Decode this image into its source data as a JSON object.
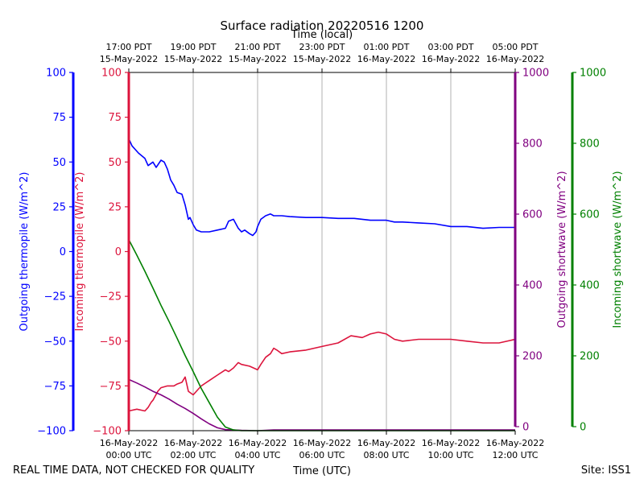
{
  "chart_data": {
    "type": "line",
    "title": "Surface radiation 20220516 1200",
    "top_axis_label": "Time (local)",
    "xlabel": "Time (UTC)",
    "footer_left": "REAL TIME DATA, NOT CHECKED FOR QUALITY",
    "footer_right": "Site: ISS1",
    "x_range_hours": [
      0,
      12
    ],
    "bottom_ticks": [
      {
        "h": 0,
        "l1": "16-May-2022",
        "l2": "00:00 UTC"
      },
      {
        "h": 2,
        "l1": "16-May-2022",
        "l2": "02:00 UTC"
      },
      {
        "h": 4,
        "l1": "16-May-2022",
        "l2": "04:00 UTC"
      },
      {
        "h": 6,
        "l1": "16-May-2022",
        "l2": "06:00 UTC"
      },
      {
        "h": 8,
        "l1": "16-May-2022",
        "l2": "08:00 UTC"
      },
      {
        "h": 10,
        "l1": "16-May-2022",
        "l2": "10:00 UTC"
      },
      {
        "h": 12,
        "l1": "16-May-2022",
        "l2": "12:00 UTC"
      }
    ],
    "top_ticks": [
      {
        "h": 0,
        "l1": "17:00 PDT",
        "l2": "15-May-2022"
      },
      {
        "h": 2,
        "l1": "19:00 PDT",
        "l2": "15-May-2022"
      },
      {
        "h": 4,
        "l1": "21:00 PDT",
        "l2": "15-May-2022"
      },
      {
        "h": 6,
        "l1": "23:00 PDT",
        "l2": "15-May-2022"
      },
      {
        "h": 8,
        "l1": "01:00 PDT",
        "l2": "16-May-2022"
      },
      {
        "h": 10,
        "l1": "03:00 PDT",
        "l2": "16-May-2022"
      },
      {
        "h": 12,
        "l1": "05:00 PDT",
        "l2": "16-May-2022"
      }
    ],
    "grid": true,
    "axes": [
      {
        "id": "out_thermo",
        "label": "Outgoing thermopile (W/m^2)",
        "color": "#0000ff",
        "range": [
          -100,
          100
        ],
        "ticks": [
          -100,
          -75,
          -50,
          -25,
          0,
          25,
          50,
          75,
          100
        ]
      },
      {
        "id": "in_thermo",
        "label": "Incoming thermopile (W/m^2)",
        "color": "#dc143c",
        "range": [
          -100,
          100
        ],
        "ticks": [
          -100,
          -75,
          -50,
          -25,
          0,
          25,
          50,
          75,
          100
        ]
      },
      {
        "id": "out_sw",
        "label": "Outgoing shortwave (W/m^2)",
        "color": "#800080",
        "range": [
          0,
          1000
        ],
        "ticks": [
          0,
          200,
          400,
          600,
          800,
          1000
        ]
      },
      {
        "id": "in_sw",
        "label": "Incoming shortwave (W/m^2)",
        "color": "#008000",
        "range": [
          0,
          1000
        ],
        "ticks": [
          0,
          200,
          400,
          600,
          800,
          1000
        ]
      }
    ],
    "series": [
      {
        "axis": "out_thermo",
        "color": "#0000ff",
        "x": [
          0,
          0.1,
          0.3,
          0.5,
          0.6,
          0.75,
          0.85,
          1.0,
          1.1,
          1.2,
          1.3,
          1.4,
          1.5,
          1.65,
          1.75,
          1.85,
          1.9,
          2.0,
          2.1,
          2.25,
          2.5,
          2.75,
          3.0,
          3.1,
          3.25,
          3.4,
          3.5,
          3.6,
          3.75,
          3.85,
          3.95,
          4.0,
          4.1,
          4.25,
          4.4,
          4.5,
          4.75,
          5.0,
          5.5,
          6.0,
          6.5,
          7.0,
          7.5,
          8.0,
          8.25,
          8.5,
          9.0,
          9.5,
          10.0,
          10.5,
          11.0,
          11.5,
          12.0
        ],
        "y": [
          63,
          59,
          55,
          52,
          48,
          50,
          47,
          51,
          50,
          46,
          40,
          37,
          33,
          32,
          26,
          18,
          19,
          15,
          12,
          11,
          11,
          12,
          13,
          17,
          18,
          13,
          11,
          12,
          10,
          9,
          11,
          14,
          18,
          20,
          21,
          20,
          20,
          19.5,
          19,
          19,
          18.5,
          18.5,
          17.5,
          17.5,
          16.5,
          16.5,
          16,
          15.5,
          14,
          14,
          13,
          13.5,
          13.5
        ]
      },
      {
        "axis": "in_thermo",
        "color": "#dc143c",
        "x": [
          0,
          0.25,
          0.5,
          0.6,
          0.7,
          0.75,
          0.9,
          1.0,
          1.2,
          1.4,
          1.5,
          1.65,
          1.75,
          1.85,
          2.0,
          2.25,
          2.5,
          2.75,
          3.0,
          3.1,
          3.25,
          3.4,
          3.5,
          3.75,
          4.0,
          4.1,
          4.25,
          4.4,
          4.5,
          4.6,
          4.75,
          5.0,
          5.5,
          6.0,
          6.5,
          6.9,
          7.25,
          7.5,
          7.75,
          8.0,
          8.25,
          8.5,
          9.0,
          9.5,
          10.0,
          10.5,
          11.0,
          11.5,
          12.0
        ],
        "y": [
          -89,
          -88,
          -89,
          -87,
          -84,
          -83,
          -78,
          -76,
          -75,
          -75,
          -74,
          -73,
          -70,
          -78,
          -80,
          -75,
          -72,
          -69,
          -66,
          -67,
          -65,
          -62,
          -63,
          -64,
          -66,
          -63,
          -59,
          -57,
          -54,
          -55,
          -57,
          -56,
          -55,
          -53,
          -51,
          -47,
          -48,
          -46,
          -45,
          -46,
          -49,
          -50,
          -49,
          -49,
          -49,
          -50,
          -51,
          -51,
          -49
        ]
      },
      {
        "axis": "out_sw",
        "color": "#800080",
        "x": [
          0,
          0.25,
          0.5,
          0.75,
          1.0,
          1.25,
          1.5,
          1.75,
          2.0,
          2.25,
          2.5,
          2.75,
          3.0,
          3.5,
          4.0,
          4.25,
          4.5,
          5.0,
          6.0,
          7.0,
          8.0,
          9.0,
          10.0,
          11.0,
          12.0
        ],
        "y": [
          143,
          133,
          122,
          110,
          100,
          88,
          74,
          62,
          48,
          33,
          19,
          8,
          3,
          1,
          0,
          1,
          2,
          2,
          2,
          2,
          2,
          2,
          2,
          2,
          2
        ]
      },
      {
        "axis": "in_sw",
        "color": "#008000",
        "x": [
          0,
          0.25,
          0.5,
          0.75,
          1.0,
          1.25,
          1.5,
          1.75,
          2.0,
          2.25,
          2.5,
          2.75,
          3.0,
          3.25,
          3.5,
          4.0,
          4.5,
          5.0,
          6.0,
          7.0,
          8.0,
          9.0,
          10.0,
          11.0,
          12.0
        ],
        "y": [
          533,
          490,
          445,
          398,
          350,
          305,
          258,
          210,
          165,
          118,
          78,
          38,
          10,
          2,
          0,
          0,
          0,
          0,
          0,
          0,
          0,
          0,
          0,
          0,
          0
        ]
      }
    ]
  }
}
